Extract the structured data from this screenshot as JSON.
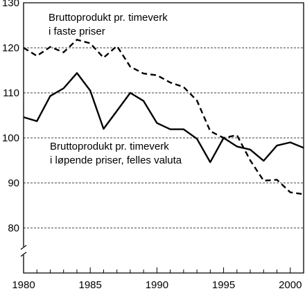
{
  "chart_data": {
    "type": "line",
    "title": "",
    "xlabel": "",
    "ylabel": "",
    "xlim": [
      1980,
      2001
    ],
    "ylim": [
      70,
      130
    ],
    "axis_break": true,
    "grid": "horizontal dashed",
    "x_ticks": [
      1980,
      1985,
      1990,
      1995,
      2000
    ],
    "x_tick_labels": [
      "1980",
      "1985",
      "1990",
      "1995",
      "2000"
    ],
    "y_ticks": [
      80,
      90,
      100,
      110,
      120,
      130
    ],
    "y_tick_labels": [
      "80",
      "90",
      "100",
      "110",
      "120",
      "130"
    ],
    "x": [
      1980,
      1981,
      1982,
      1983,
      1984,
      1985,
      1986,
      1987,
      1988,
      1989,
      1990,
      1991,
      1992,
      1993,
      1994,
      1995,
      1996,
      1997,
      1998,
      1999,
      2000,
      2001
    ],
    "series": [
      {
        "style": "dashed",
        "color": "#000000",
        "annotation_lines": [
          "Bruttoprodukt pr. timeverk",
          "i faste priser"
        ],
        "values": [
          120,
          118.2,
          120.2,
          119,
          121.8,
          121,
          117.8,
          120.4,
          115.8,
          114.3,
          113.9,
          112.3,
          111.3,
          108.3,
          101.5,
          100,
          100.6,
          95,
          90.5,
          90.7,
          87.9,
          87.5
        ]
      },
      {
        "style": "solid",
        "color": "#000000",
        "annotation_lines": [
          "Bruttoprodukt pr. timeverk",
          "i løpende priser, felles valuta"
        ],
        "values": [
          104.6,
          103.7,
          109.3,
          111,
          114.4,
          110.5,
          102,
          106,
          110,
          108.2,
          103.3,
          101.9,
          101.9,
          99.8,
          94.6,
          100,
          98.1,
          97.4,
          94.9,
          98.3,
          99,
          97.8
        ]
      }
    ]
  }
}
